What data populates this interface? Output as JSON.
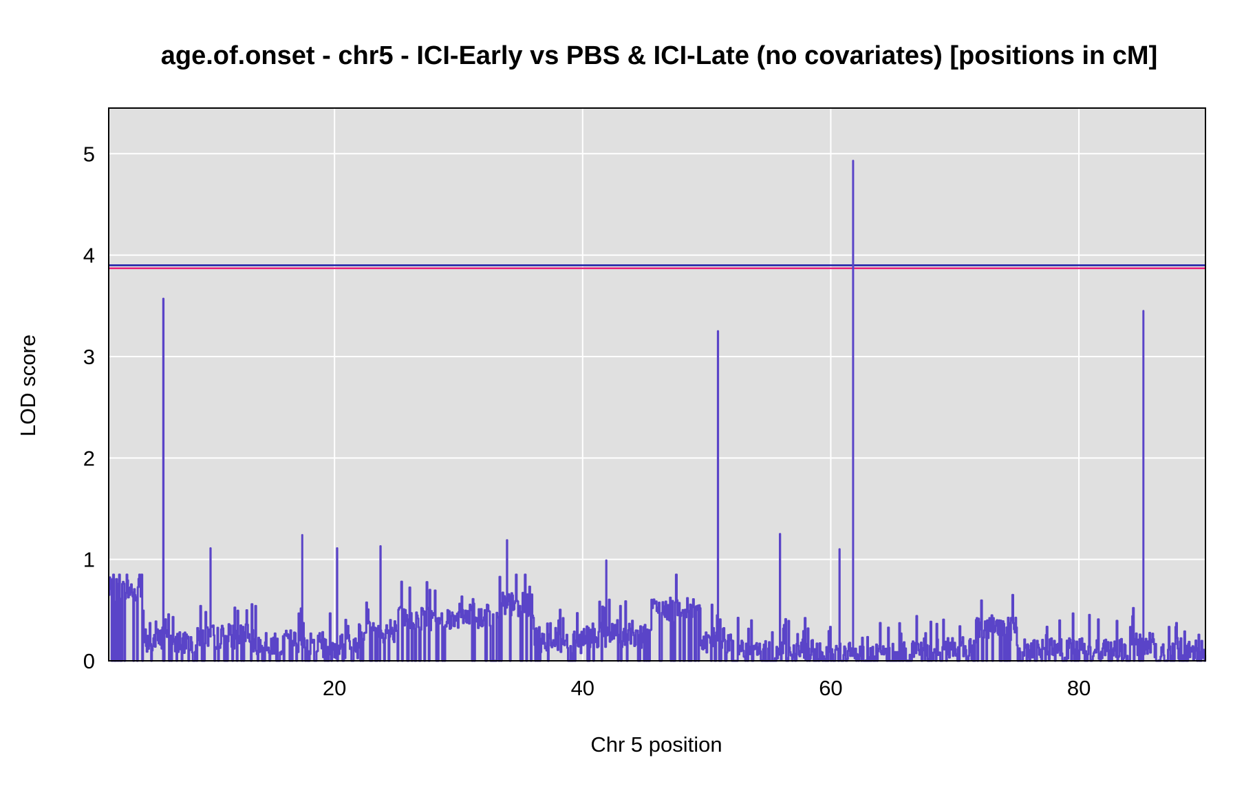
{
  "chart_data": {
    "type": "line",
    "title": "age.of.onset - chr5 - ICI-Early vs PBS & ICI-Late (no covariates) [positions in cM]",
    "xlabel": "Chr 5 position",
    "ylabel": "LOD score",
    "xlim": [
      1.8,
      90.2
    ],
    "ylim": [
      0,
      5.45
    ],
    "x_ticks": [
      20,
      40,
      60,
      80
    ],
    "y_ticks": [
      0,
      1,
      2,
      3,
      4,
      5
    ],
    "grid": true,
    "legend": "none",
    "colors": {
      "line": "#5a44c8",
      "threshold_upper": "#1a1aa6",
      "threshold_lower": "#e8207a",
      "panel_background": "#e0e0e0",
      "grid": "#ffffff"
    },
    "thresholds": [
      {
        "value": 3.9,
        "color": "#1a1aa6"
      },
      {
        "value": 3.87,
        "color": "#e8207a"
      }
    ],
    "peaks": [
      {
        "x": 6.2,
        "y": 3.57
      },
      {
        "x": 10.0,
        "y": 1.11
      },
      {
        "x": 17.4,
        "y": 1.24
      },
      {
        "x": 20.2,
        "y": 1.11
      },
      {
        "x": 23.7,
        "y": 1.13
      },
      {
        "x": 33.9,
        "y": 1.19
      },
      {
        "x": 41.9,
        "y": 0.99
      },
      {
        "x": 50.9,
        "y": 3.25
      },
      {
        "x": 55.9,
        "y": 1.25
      },
      {
        "x": 60.7,
        "y": 1.1
      },
      {
        "x": 61.8,
        "y": 4.93
      },
      {
        "x": 85.2,
        "y": 3.45
      }
    ],
    "segments": [
      {
        "x": [
          1.8,
          4.5
        ],
        "y": 0.7
      },
      {
        "x": [
          4.5,
          9.0
        ],
        "y": 0.2
      },
      {
        "x": [
          9.0,
          13.0
        ],
        "y": 0.24
      },
      {
        "x": [
          13.0,
          18.0
        ],
        "y": 0.18
      },
      {
        "x": [
          18.0,
          22.0
        ],
        "y": 0.15
      },
      {
        "x": [
          22.0,
          25.0
        ],
        "y": 0.3
      },
      {
        "x": [
          25.0,
          30.0
        ],
        "y": 0.42
      },
      {
        "x": [
          30.0,
          33.0
        ],
        "y": 0.44
      },
      {
        "x": [
          33.0,
          36.0
        ],
        "y": 0.55
      },
      {
        "x": [
          36.0,
          40.0
        ],
        "y": 0.2
      },
      {
        "x": [
          40.0,
          45.5
        ],
        "y": 0.25
      },
      {
        "x": [
          45.5,
          49.5
        ],
        "y": 0.5
      },
      {
        "x": [
          49.5,
          52.0
        ],
        "y": 0.2
      },
      {
        "x": [
          52.0,
          60.0
        ],
        "y": 0.08
      },
      {
        "x": [
          60.0,
          66.0
        ],
        "y": 0.06
      },
      {
        "x": [
          66.0,
          71.5
        ],
        "y": 0.12
      },
      {
        "x": [
          71.5,
          75.0
        ],
        "y": 0.3
      },
      {
        "x": [
          75.0,
          84.0
        ],
        "y": 0.1
      },
      {
        "x": [
          84.0,
          86.0
        ],
        "y": 0.17
      },
      {
        "x": [
          86.0,
          90.2
        ],
        "y": 0.08
      }
    ],
    "noise_level": 0.38
  }
}
